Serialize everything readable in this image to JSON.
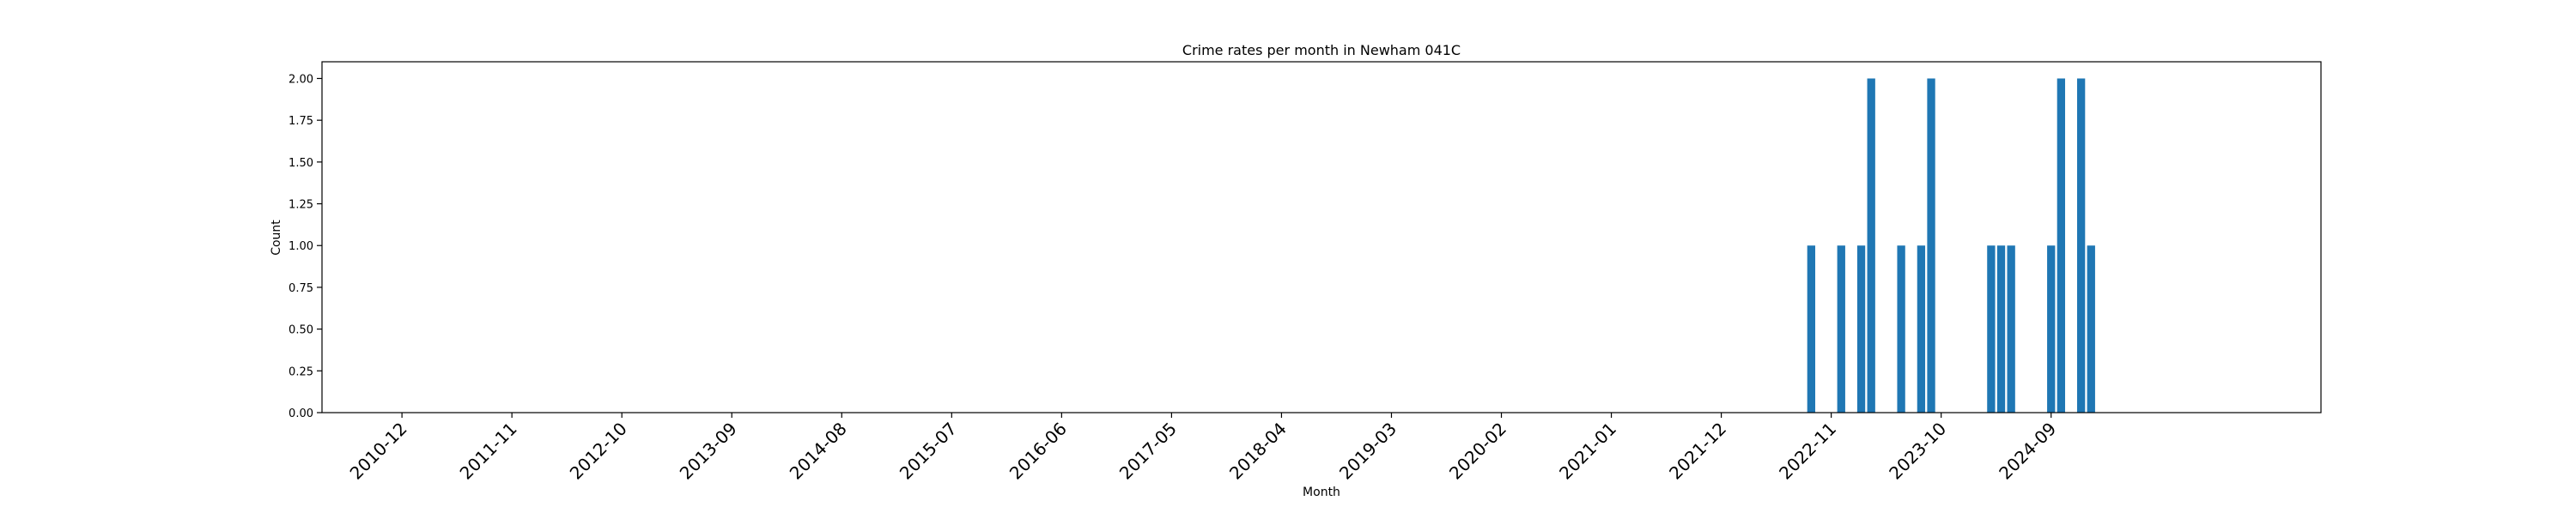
{
  "chart_data": {
    "type": "bar",
    "title": "Crime rates per month in Newham 041C",
    "xlabel": "Month",
    "ylabel": "Count",
    "ylim": [
      0,
      2.1
    ],
    "yticks": [
      "0.00",
      "0.25",
      "0.50",
      "0.75",
      "1.00",
      "1.25",
      "1.50",
      "1.75",
      "2.00"
    ],
    "xlim": [
      "2010-04",
      "2026-12"
    ],
    "xticks": [
      "2010-12",
      "2011-11",
      "2012-10",
      "2013-09",
      "2014-08",
      "2015-07",
      "2016-06",
      "2017-05",
      "2018-04",
      "2019-03",
      "2020-02",
      "2021-01",
      "2021-12",
      "2022-11",
      "2023-10",
      "2024-09"
    ],
    "grid": false,
    "legend": "none",
    "bar_color": "#1f77b4",
    "x": [
      "2022-09",
      "2022-12",
      "2023-02",
      "2023-03",
      "2023-06",
      "2023-08",
      "2023-09",
      "2024-03",
      "2024-04",
      "2024-05",
      "2024-09",
      "2024-10",
      "2024-12",
      "2025-01"
    ],
    "values": [
      1,
      1,
      1,
      2,
      1,
      1,
      2,
      1,
      1,
      1,
      1,
      2,
      2,
      1
    ]
  }
}
